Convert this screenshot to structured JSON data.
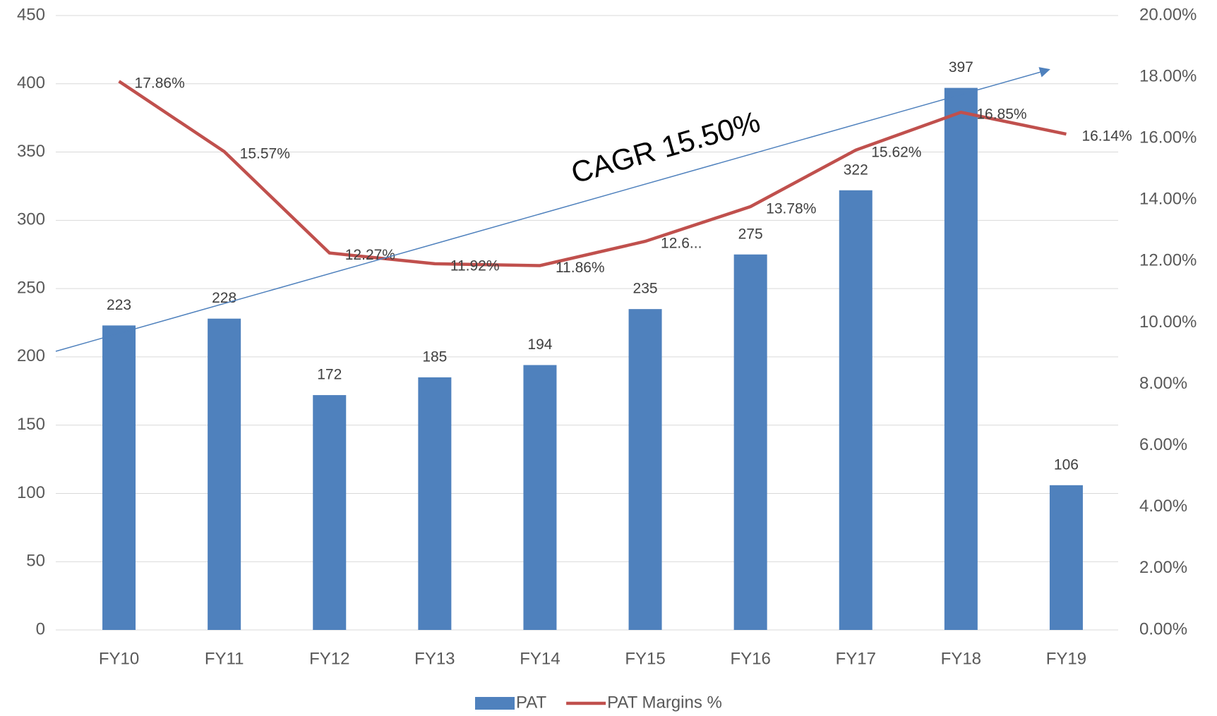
{
  "chart_data": {
    "type": "bar",
    "annotation": "CAGR 15.50%",
    "categories": [
      "FY10",
      "FY11",
      "FY12",
      "FY13",
      "FY14",
      "FY15",
      "FY16",
      "FY17",
      "FY18",
      "FY19"
    ],
    "series": [
      {
        "name": "PAT",
        "type": "bar",
        "color": "#4f81bd",
        "values": [
          223,
          228,
          172,
          185,
          194,
          235,
          275,
          322,
          397,
          106
        ]
      },
      {
        "name": "PAT Margins %",
        "type": "line",
        "axis": "y2",
        "color": "#c0504d",
        "values": [
          17.86,
          15.57,
          12.27,
          11.92,
          11.86,
          12.65,
          13.78,
          15.62,
          16.85,
          16.14
        ],
        "value_labels": [
          "17.86%",
          "15.57%",
          "12.27%",
          "11.92%",
          "11.86%",
          "12.6...",
          "13.78%",
          "15.62%",
          "16.85%",
          "16.14%"
        ]
      }
    ],
    "ylim": [
      0,
      450
    ],
    "yticks": [
      0,
      50,
      100,
      150,
      200,
      250,
      300,
      350,
      400,
      450
    ],
    "y2lim": [
      0,
      20
    ],
    "y2ticks": [
      {
        "value": 0,
        "label": "0.00%"
      },
      {
        "value": 2,
        "label": "2.00%"
      },
      {
        "value": 4,
        "label": "4.00%"
      },
      {
        "value": 6,
        "label": "6.00%"
      },
      {
        "value": 8,
        "label": "8.00%"
      },
      {
        "value": 10,
        "label": "10.00%"
      },
      {
        "value": 12,
        "label": "12.00%"
      },
      {
        "value": 14,
        "label": "14.00%"
      },
      {
        "value": 16,
        "label": "16.00%"
      },
      {
        "value": 18,
        "label": "18.00%"
      },
      {
        "value": 20,
        "label": "20.00%"
      }
    ],
    "grid": true,
    "legend": "bottom"
  }
}
